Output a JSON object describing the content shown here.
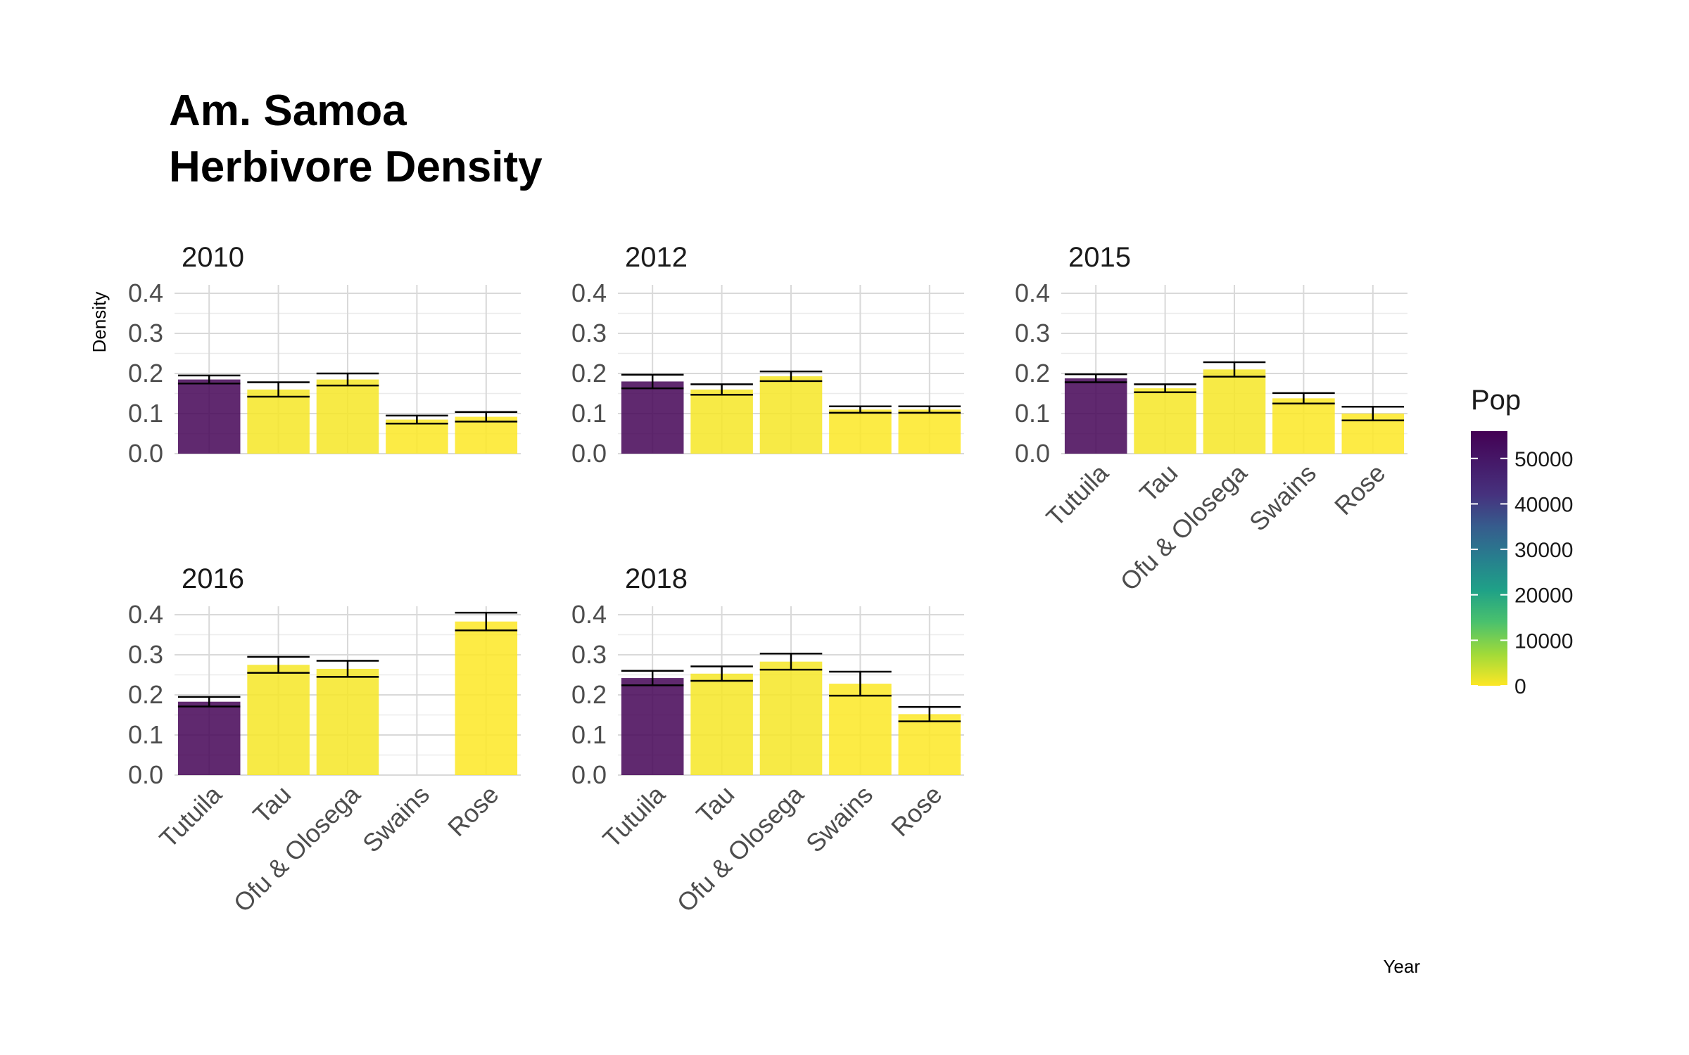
{
  "title_lines": [
    "Am. Samoa",
    "Herbivore Density"
  ],
  "chart_data": {
    "type": "bar",
    "facet_by": "Year",
    "categories": [
      "Tutuila",
      "Tau",
      "Ofu & Olosega",
      "Swains",
      "Rose"
    ],
    "ylabel": "Density",
    "xlabel": "Year",
    "ylim": [
      0,
      0.4
    ],
    "yticks": [
      "0.0",
      "0.1",
      "0.2",
      "0.3",
      "0.4"
    ],
    "grid": true,
    "facets": [
      {
        "year": "2010",
        "values": [
          0.185,
          0.16,
          0.185,
          0.085,
          0.092
        ],
        "err": [
          0.01,
          0.018,
          0.015,
          0.01,
          0.012
        ]
      },
      {
        "year": "2012",
        "values": [
          0.18,
          0.16,
          0.193,
          0.11,
          0.11
        ],
        "err": [
          0.017,
          0.013,
          0.012,
          0.008,
          0.008
        ]
      },
      {
        "year": "2015",
        "values": [
          0.188,
          0.163,
          0.21,
          0.138,
          0.1
        ],
        "err": [
          0.01,
          0.01,
          0.018,
          0.013,
          0.017
        ]
      },
      {
        "year": "2016",
        "values": [
          0.183,
          0.275,
          0.265,
          null,
          0.383
        ],
        "err": [
          0.012,
          0.02,
          0.02,
          null,
          0.022
        ]
      },
      {
        "year": "2018",
        "values": [
          0.242,
          0.253,
          0.283,
          0.228,
          0.152
        ],
        "err": [
          0.018,
          0.018,
          0.02,
          0.03,
          0.018
        ]
      }
    ],
    "fill_variable": "Pop",
    "populations": [
      55500,
      500,
      500,
      50,
      0
    ],
    "legend": {
      "title": "Pop",
      "ticks": [
        "0",
        "10000",
        "20000",
        "30000",
        "40000",
        "50000"
      ],
      "range": [
        0,
        56000
      ],
      "position": "right"
    },
    "colors": {
      "low": "#fde725",
      "high": "#440154",
      "bar_opacity": 0.85
    }
  }
}
